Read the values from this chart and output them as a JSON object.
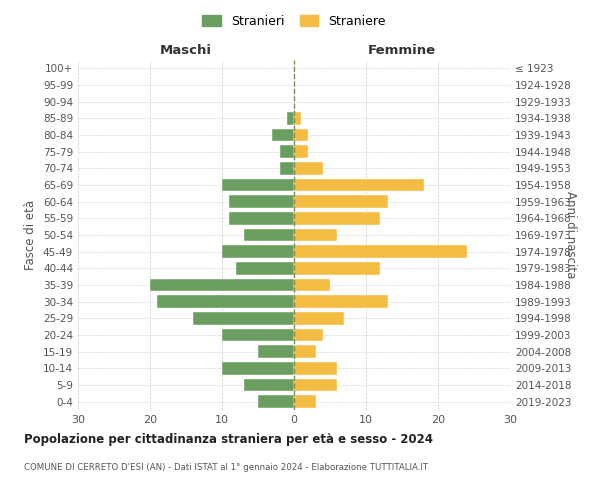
{
  "age_groups": [
    "0-4",
    "5-9",
    "10-14",
    "15-19",
    "20-24",
    "25-29",
    "30-34",
    "35-39",
    "40-44",
    "45-49",
    "50-54",
    "55-59",
    "60-64",
    "65-69",
    "70-74",
    "75-79",
    "80-84",
    "85-89",
    "90-94",
    "95-99",
    "100+"
  ],
  "birth_years": [
    "2019-2023",
    "2014-2018",
    "2009-2013",
    "2004-2008",
    "1999-2003",
    "1994-1998",
    "1989-1993",
    "1984-1988",
    "1979-1983",
    "1974-1978",
    "1969-1973",
    "1964-1968",
    "1959-1963",
    "1954-1958",
    "1949-1953",
    "1944-1948",
    "1939-1943",
    "1934-1938",
    "1929-1933",
    "1924-1928",
    "≤ 1923"
  ],
  "maschi": [
    5,
    7,
    10,
    5,
    10,
    14,
    19,
    20,
    8,
    10,
    7,
    9,
    9,
    10,
    2,
    2,
    3,
    1,
    0,
    0,
    0
  ],
  "femmine": [
    3,
    6,
    6,
    3,
    4,
    7,
    13,
    5,
    12,
    24,
    6,
    12,
    13,
    18,
    4,
    2,
    2,
    1,
    0,
    0,
    0
  ],
  "color_maschi": "#6a9e5e",
  "color_femmine": "#f5bc42",
  "title": "Popolazione per cittadinanza straniera per età e sesso - 2024",
  "subtitle": "COMUNE DI CERRETO D'ESI (AN) - Dati ISTAT al 1° gennaio 2024 - Elaborazione TUTTITALIA.IT",
  "ylabel_left": "Fasce di età",
  "ylabel_right": "Anni di nascita",
  "xlabel_left": "Maschi",
  "xlabel_right": "Femmine",
  "legend_maschi": "Stranieri",
  "legend_femmine": "Straniere",
  "xlim": 30,
  "background_color": "#ffffff",
  "grid_color": "#cccccc",
  "dashed_line_color": "#888855"
}
